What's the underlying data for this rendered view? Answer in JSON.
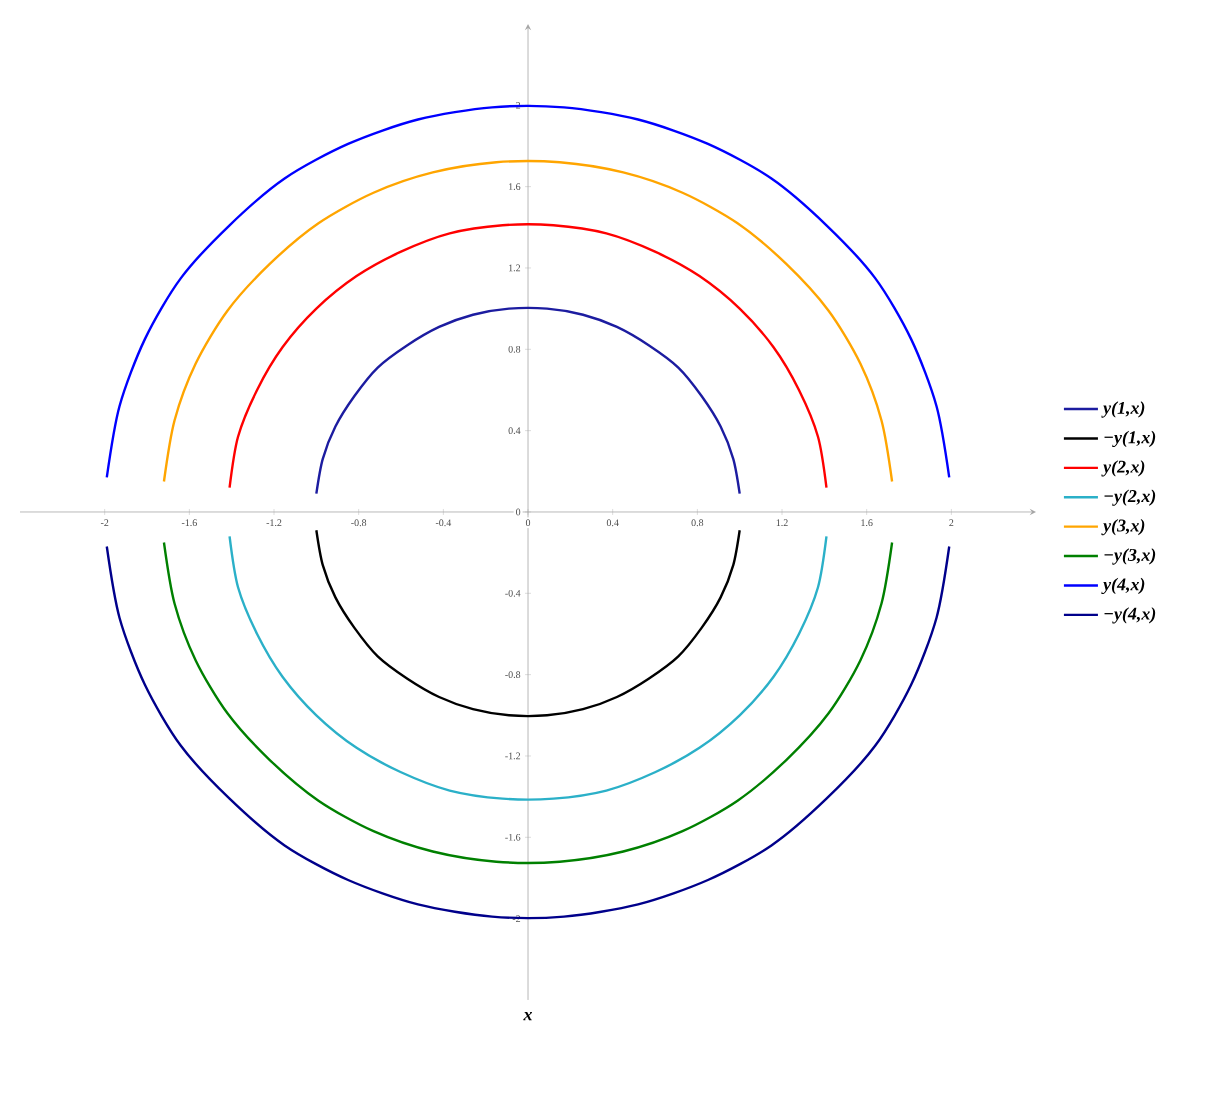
{
  "chart_data": {
    "type": "line",
    "xlabel": "x",
    "xlim": [
      -2.4,
      2.4
    ],
    "ylim": [
      -2.4,
      2.4
    ],
    "xticks": [
      -2,
      -1.6,
      -1.2,
      -0.8,
      -0.4,
      0,
      0.4,
      0.8,
      1.2,
      1.6,
      2
    ],
    "yticks": [
      -2,
      -1.6,
      -1.2,
      -0.8,
      -0.4,
      0,
      0.4,
      0.8,
      1.2,
      1.6,
      2
    ],
    "legend": "right",
    "marker": "none",
    "line_style": "solid",
    "series": [
      {
        "name": "y(1,x)",
        "color": "#1c1ca0",
        "x": [
          -1.0,
          -0.97,
          -0.91,
          -0.82,
          -0.71,
          -0.57,
          -0.42,
          -0.26,
          -0.09,
          0.09,
          0.26,
          0.42,
          0.57,
          0.71,
          0.82,
          0.91,
          0.97,
          1.0
        ],
        "values": [
          0.09,
          0.26,
          0.42,
          0.57,
          0.71,
          0.82,
          0.91,
          0.97,
          1.0,
          1.0,
          0.97,
          0.91,
          0.82,
          0.71,
          0.57,
          0.42,
          0.26,
          0.09
        ]
      },
      {
        "name": "−y(1,x)",
        "color": "#000000",
        "x": [
          -1.0,
          -0.97,
          -0.91,
          -0.82,
          -0.71,
          -0.57,
          -0.42,
          -0.26,
          -0.09,
          0.09,
          0.26,
          0.42,
          0.57,
          0.71,
          0.82,
          0.91,
          0.97,
          1.0
        ],
        "values": [
          -0.09,
          -0.26,
          -0.42,
          -0.57,
          -0.71,
          -0.82,
          -0.91,
          -0.97,
          -1.0,
          -1.0,
          -0.97,
          -0.91,
          -0.82,
          -0.71,
          -0.57,
          -0.42,
          -0.26,
          -0.09
        ]
      },
      {
        "name": "y(2,x)",
        "color": "#ff0000",
        "x": [
          -1.41,
          -1.37,
          -1.28,
          -1.16,
          -1.0,
          -0.81,
          -0.6,
          -0.37,
          -0.12,
          0.12,
          0.37,
          0.6,
          0.81,
          1.0,
          1.16,
          1.28,
          1.37,
          1.41
        ],
        "values": [
          0.12,
          0.37,
          0.6,
          0.81,
          1.0,
          1.16,
          1.28,
          1.37,
          1.41,
          1.41,
          1.37,
          1.28,
          1.16,
          1.0,
          0.81,
          0.6,
          0.37,
          0.12
        ]
      },
      {
        "name": "−y(2,x)",
        "color": "#2bb0c8",
        "x": [
          -1.41,
          -1.37,
          -1.28,
          -1.16,
          -1.0,
          -0.81,
          -0.6,
          -0.37,
          -0.12,
          0.12,
          0.37,
          0.6,
          0.81,
          1.0,
          1.16,
          1.28,
          1.37,
          1.41
        ],
        "values": [
          -0.12,
          -0.37,
          -0.6,
          -0.81,
          -1.0,
          -1.16,
          -1.28,
          -1.37,
          -1.41,
          -1.41,
          -1.37,
          -1.28,
          -1.16,
          -1.0,
          -0.81,
          -0.6,
          -0.37,
          -0.12
        ]
      },
      {
        "name": "y(3,x)",
        "color": "#ffa500",
        "x": [
          -1.72,
          -1.67,
          -1.57,
          -1.42,
          -1.22,
          -0.99,
          -0.73,
          -0.45,
          -0.15,
          0.15,
          0.45,
          0.73,
          0.99,
          1.22,
          1.42,
          1.57,
          1.67,
          1.72
        ],
        "values": [
          0.15,
          0.45,
          0.73,
          0.99,
          1.22,
          1.42,
          1.57,
          1.67,
          1.72,
          1.72,
          1.67,
          1.57,
          1.42,
          1.22,
          0.99,
          0.73,
          0.45,
          0.15
        ]
      },
      {
        "name": "−y(3,x)",
        "color": "#008000",
        "x": [
          -1.72,
          -1.67,
          -1.57,
          -1.42,
          -1.22,
          -0.99,
          -0.73,
          -0.45,
          -0.15,
          0.15,
          0.45,
          0.73,
          0.99,
          1.22,
          1.42,
          1.57,
          1.67,
          1.72
        ],
        "values": [
          -0.15,
          -0.45,
          -0.73,
          -0.99,
          -1.22,
          -1.42,
          -1.57,
          -1.67,
          -1.72,
          -1.72,
          -1.67,
          -1.57,
          -1.42,
          -1.22,
          -0.99,
          -0.73,
          -0.45,
          -0.15
        ]
      },
      {
        "name": "y(4,x)",
        "color": "#0000ff",
        "x": [
          -1.99,
          -1.93,
          -1.81,
          -1.64,
          -1.41,
          -1.15,
          -0.85,
          -0.52,
          -0.17,
          0.17,
          0.52,
          0.85,
          1.15,
          1.41,
          1.64,
          1.81,
          1.93,
          1.99
        ],
        "values": [
          0.17,
          0.52,
          0.85,
          1.15,
          1.41,
          1.64,
          1.81,
          1.93,
          1.99,
          1.99,
          1.93,
          1.81,
          1.64,
          1.41,
          1.15,
          0.85,
          0.52,
          0.17
        ]
      },
      {
        "name": "−y(4,x)",
        "color": "#00008b",
        "x": [
          -1.99,
          -1.93,
          -1.81,
          -1.64,
          -1.41,
          -1.15,
          -0.85,
          -0.52,
          -0.17,
          0.17,
          0.52,
          0.85,
          1.15,
          1.41,
          1.64,
          1.81,
          1.93,
          1.99
        ],
        "values": [
          -0.17,
          -0.52,
          -0.85,
          -1.15,
          -1.41,
          -1.64,
          -1.81,
          -1.93,
          -1.99,
          -1.99,
          -1.93,
          -1.81,
          -1.64,
          -1.41,
          -1.15,
          -0.85,
          -0.52,
          -0.17
        ]
      }
    ]
  }
}
